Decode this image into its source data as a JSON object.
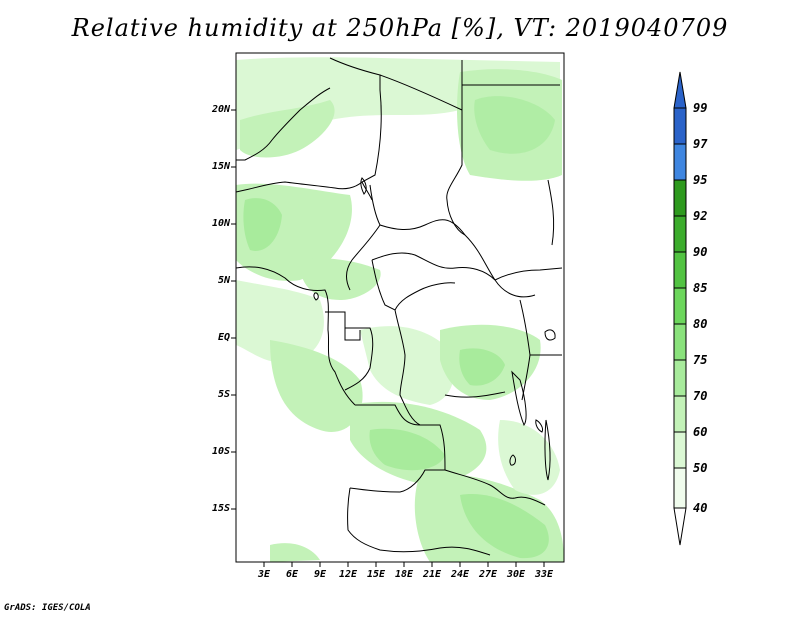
{
  "title": "Relative humidity at 250hPa [%], VT: 2019040709",
  "credit": "GrADS: IGES/COLA",
  "map": {
    "projection": "lat-lon",
    "lon_range": [
      "0E",
      "35E"
    ],
    "lat_range": [
      "20S",
      "25N"
    ],
    "lat_labels": [
      "20N",
      "15N",
      "10N",
      "5N",
      "EQ",
      "5S",
      "10S",
      "15S"
    ],
    "lon_labels": [
      "3E",
      "6E",
      "9E",
      "12E",
      "15E",
      "18E",
      "21E",
      "24E",
      "27E",
      "30E",
      "33E"
    ],
    "boundaries_color": "#000000",
    "region": "West-Central Africa"
  },
  "colorbar": {
    "levels": [
      "99",
      "97",
      "95",
      "92",
      "90",
      "85",
      "80",
      "75",
      "70",
      "60",
      "50",
      "40"
    ],
    "colors": [
      "#2b63c9",
      "#3f86e0",
      "#2e9a1e",
      "#3cac2c",
      "#52c342",
      "#6cd65c",
      "#8ae27c",
      "#a8eb9c",
      "#c3f2b8",
      "#dbf8d4",
      "#f0fced"
    ],
    "extends": "both"
  }
}
